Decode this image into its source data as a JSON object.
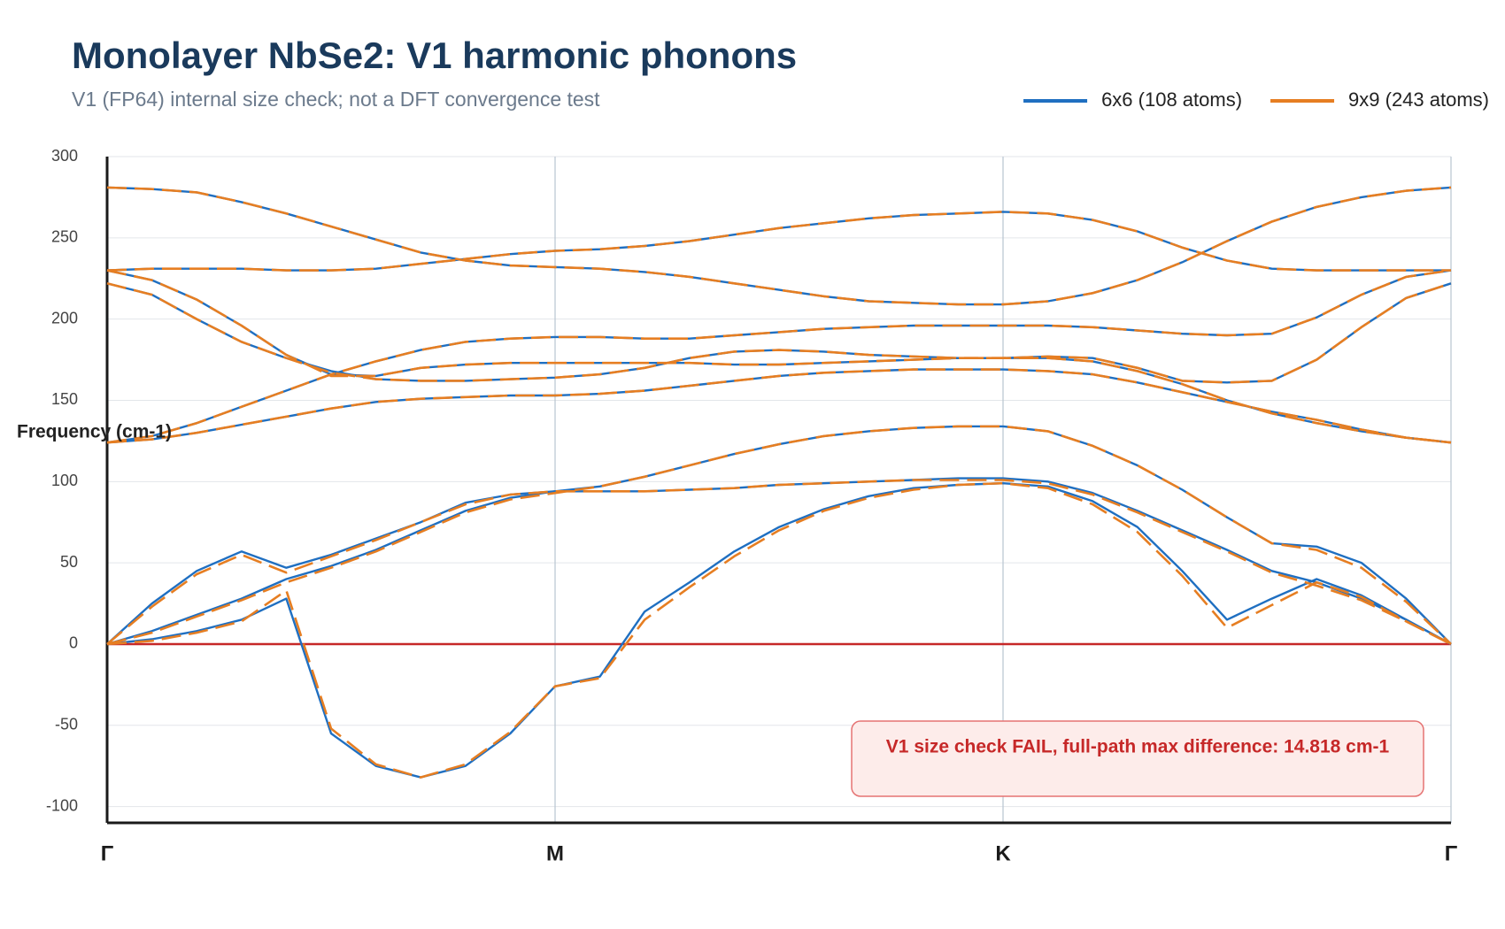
{
  "chart_data": {
    "type": "line",
    "title": "Monolayer NbSe2: V1 harmonic phonons",
    "subtitle": "V1 (FP64) internal size check; not a DFT convergence test",
    "y_label": "Frequency (cm-1)",
    "annotation": "V1 size check FAIL, full-path max difference: 14.818 cm-1",
    "x": [
      0,
      0.1,
      0.2,
      0.3,
      0.4,
      0.5,
      0.6,
      0.7,
      0.8,
      0.9,
      1,
      1.1,
      1.2,
      1.3,
      1.4,
      1.5,
      1.6,
      1.7,
      1.8,
      1.9,
      2,
      2.1,
      2.2,
      2.3,
      2.4,
      2.5,
      2.6,
      2.7,
      2.8,
      2.9,
      3
    ],
    "xlim": [
      0,
      3
    ],
    "xticks": [
      {
        "value": 0,
        "label": "Γ"
      },
      {
        "value": 1,
        "label": "M"
      },
      {
        "value": 2,
        "label": "K"
      },
      {
        "value": 3,
        "label": "Γ"
      }
    ],
    "ylim": [
      -110,
      300
    ],
    "yticks": [
      -100,
      -50,
      0,
      50,
      100,
      150,
      200,
      250,
      300
    ],
    "grid": true,
    "zero_line_color": "#c62828",
    "legend": "top-right",
    "series": [
      {
        "name": "6x6 (108 atoms)",
        "color": "#1f6fc1",
        "dashed": false,
        "bands": [
          [
            0,
            3,
            8,
            15,
            28,
            -55,
            -75,
            -82,
            -75,
            -55,
            -26,
            -20,
            20,
            38,
            57,
            72,
            83,
            91,
            96,
            98,
            99,
            97,
            88,
            72,
            45,
            15,
            28,
            40,
            30,
            15,
            0
          ],
          [
            0,
            25,
            45,
            57,
            47,
            55,
            65,
            75,
            87,
            92,
            94,
            94,
            94,
            95,
            96,
            98,
            99,
            100,
            101,
            102,
            102,
            100,
            93,
            82,
            70,
            58,
            45,
            38,
            28,
            15,
            0
          ],
          [
            0,
            8,
            18,
            28,
            40,
            48,
            58,
            70,
            82,
            90,
            94,
            97,
            103,
            110,
            117,
            123,
            128,
            131,
            133,
            134,
            134,
            131,
            122,
            110,
            95,
            78,
            62,
            60,
            50,
            28,
            0
          ],
          [
            124,
            126,
            130,
            135,
            140,
            145,
            149,
            151,
            152,
            153,
            153,
            154,
            156,
            159,
            162,
            165,
            167,
            168,
            169,
            169,
            169,
            168,
            166,
            161,
            155,
            149,
            143,
            138,
            132,
            127,
            124
          ],
          [
            222,
            215,
            200,
            186,
            176,
            168,
            163,
            162,
            162,
            163,
            164,
            166,
            170,
            176,
            180,
            181,
            180,
            178,
            177,
            176,
            176,
            176,
            174,
            168,
            160,
            150,
            142,
            136,
            131,
            127,
            124
          ],
          [
            230,
            224,
            212,
            196,
            178,
            166,
            165,
            170,
            172,
            173,
            173,
            173,
            173,
            173,
            172,
            172,
            173,
            174,
            175,
            176,
            176,
            177,
            176,
            170,
            162,
            161,
            162,
            175,
            195,
            213,
            222
          ],
          [
            124,
            128,
            136,
            146,
            156,
            166,
            174,
            181,
            186,
            188,
            189,
            189,
            188,
            188,
            190,
            192,
            194,
            195,
            196,
            196,
            196,
            196,
            195,
            193,
            191,
            190,
            191,
            201,
            215,
            226,
            230
          ],
          [
            230,
            231,
            231,
            231,
            230,
            230,
            231,
            234,
            237,
            240,
            242,
            243,
            245,
            248,
            252,
            256,
            259,
            262,
            264,
            265,
            266,
            265,
            261,
            254,
            244,
            236,
            231,
            230,
            230,
            230,
            230
          ],
          [
            281,
            280,
            278,
            272,
            265,
            257,
            249,
            241,
            236,
            233,
            232,
            231,
            229,
            226,
            222,
            218,
            214,
            211,
            210,
            209,
            209,
            211,
            216,
            224,
            235,
            248,
            260,
            269,
            275,
            279,
            281
          ]
        ]
      },
      {
        "name": "9x9 (243 atoms)",
        "color": "#e67e22",
        "dashed": true,
        "bands": [
          [
            0,
            2,
            7,
            14,
            33,
            -52,
            -74,
            -82,
            -74,
            -54,
            -26,
            -21,
            15,
            35,
            54,
            70,
            82,
            90,
            95,
            98,
            99,
            96,
            86,
            69,
            42,
            10,
            24,
            38,
            29,
            14,
            0
          ],
          [
            0,
            23,
            43,
            55,
            44,
            54,
            64,
            75,
            86,
            92,
            94,
            94,
            94,
            95,
            96,
            98,
            99,
            100,
            101,
            101,
            101,
            99,
            92,
            81,
            69,
            57,
            44,
            36,
            27,
            14,
            0
          ],
          [
            0,
            7,
            17,
            27,
            38,
            47,
            57,
            69,
            81,
            89,
            93,
            97,
            103,
            110,
            117,
            123,
            128,
            131,
            133,
            134,
            134,
            131,
            122,
            110,
            95,
            78,
            62,
            58,
            47,
            26,
            0
          ],
          [
            124,
            126,
            130,
            135,
            140,
            145,
            149,
            151,
            152,
            153,
            153,
            154,
            156,
            159,
            162,
            165,
            167,
            168,
            169,
            169,
            169,
            168,
            166,
            161,
            155,
            149,
            143,
            138,
            132,
            127,
            124
          ],
          [
            222,
            215,
            200,
            186,
            176,
            167,
            163,
            162,
            162,
            163,
            164,
            166,
            170,
            176,
            180,
            181,
            180,
            178,
            177,
            176,
            176,
            176,
            174,
            168,
            160,
            150,
            142,
            136,
            131,
            127,
            124
          ],
          [
            230,
            224,
            212,
            196,
            178,
            165,
            165,
            170,
            172,
            173,
            173,
            173,
            173,
            173,
            172,
            172,
            173,
            174,
            175,
            176,
            176,
            177,
            176,
            170,
            162,
            161,
            162,
            175,
            195,
            213,
            222
          ],
          [
            124,
            128,
            136,
            146,
            156,
            166,
            174,
            181,
            186,
            188,
            189,
            189,
            188,
            188,
            190,
            192,
            194,
            195,
            196,
            196,
            196,
            196,
            195,
            193,
            191,
            190,
            191,
            201,
            215,
            226,
            230
          ],
          [
            230,
            231,
            231,
            231,
            230,
            230,
            231,
            234,
            237,
            240,
            242,
            243,
            245,
            248,
            252,
            256,
            259,
            262,
            264,
            265,
            266,
            265,
            261,
            254,
            244,
            236,
            231,
            230,
            230,
            230,
            230
          ],
          [
            281,
            280,
            278,
            272,
            265,
            257,
            249,
            241,
            236,
            233,
            232,
            231,
            229,
            226,
            222,
            218,
            214,
            211,
            210,
            209,
            209,
            211,
            216,
            224,
            235,
            248,
            260,
            269,
            275,
            279,
            281
          ]
        ]
      }
    ]
  }
}
